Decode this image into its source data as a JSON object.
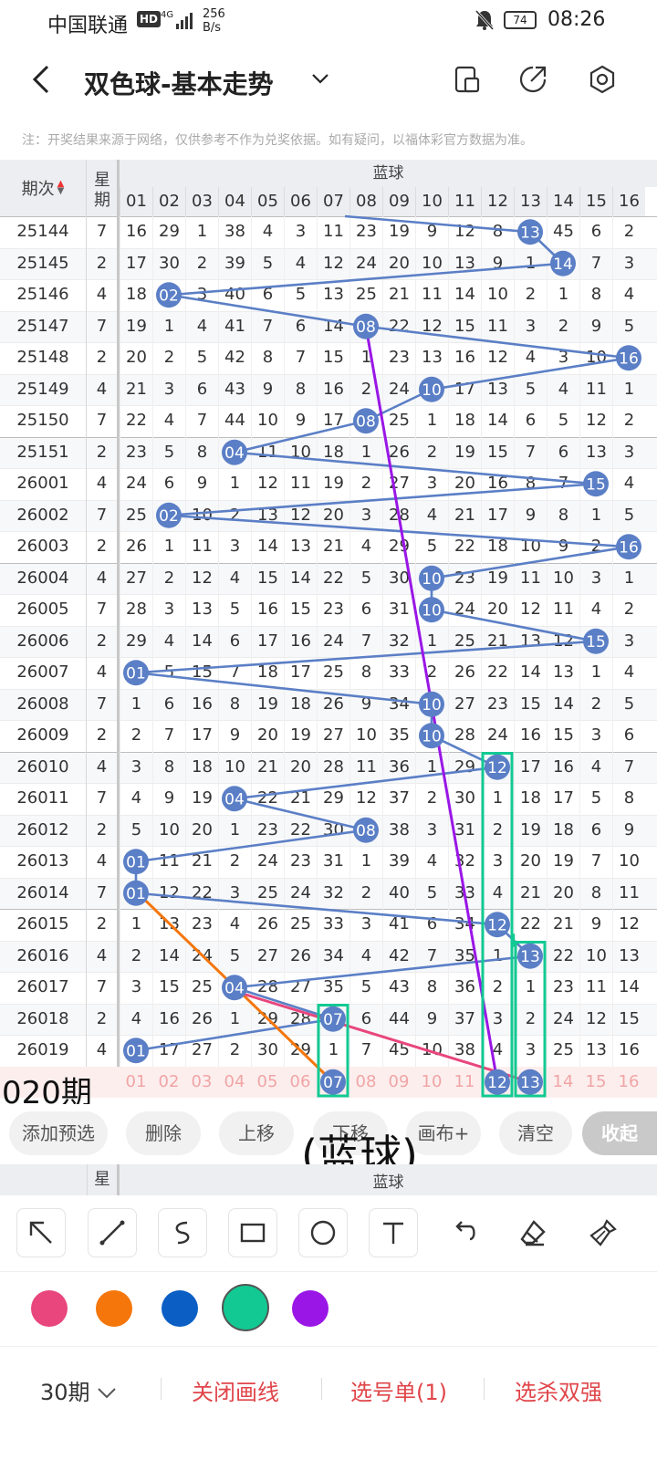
{
  "status": {
    "carrier": "中国联通",
    "hd": "HD",
    "signal": "4G",
    "speed_value": "256",
    "speed_unit": "B/s",
    "battery": "74",
    "time": "08:26"
  },
  "header": {
    "title": "双色球-基本走势"
  },
  "notice": "注：开奖结果来源于网络，仅供参考不作为兑奖依据。如有疑问，以福体彩官方数据为准。",
  "table": {
    "col_period": "期次",
    "col_weekday": "星期",
    "blue_header": "蓝球",
    "numbers": [
      "01",
      "02",
      "03",
      "04",
      "05",
      "06",
      "07",
      "08",
      "09",
      "10",
      "11",
      "12",
      "13",
      "14",
      "15",
      "16"
    ],
    "rows": [
      {
        "period": "25144",
        "weekday": "7",
        "blue": 13,
        "cells": [
          16,
          29,
          1,
          38,
          4,
          3,
          11,
          23,
          19,
          9,
          12,
          8,
          13,
          45,
          6,
          2
        ]
      },
      {
        "period": "25145",
        "weekday": "2",
        "blue": 14,
        "cells": [
          17,
          30,
          2,
          39,
          5,
          4,
          12,
          24,
          20,
          10,
          13,
          9,
          1,
          14,
          7,
          3
        ]
      },
      {
        "period": "25146",
        "weekday": "4",
        "blue": 2,
        "cells": [
          18,
          2,
          3,
          40,
          6,
          5,
          13,
          25,
          21,
          11,
          14,
          10,
          2,
          1,
          8,
          4
        ]
      },
      {
        "period": "25147",
        "weekday": "7",
        "blue": 8,
        "cells": [
          19,
          1,
          4,
          41,
          7,
          6,
          14,
          8,
          22,
          12,
          15,
          11,
          3,
          2,
          9,
          5
        ]
      },
      {
        "period": "25148",
        "weekday": "2",
        "blue": 16,
        "cells": [
          20,
          2,
          5,
          42,
          8,
          7,
          15,
          1,
          23,
          13,
          16,
          12,
          4,
          3,
          10,
          16
        ]
      },
      {
        "period": "25149",
        "weekday": "4",
        "blue": 10,
        "cells": [
          21,
          3,
          6,
          43,
          9,
          8,
          16,
          2,
          24,
          10,
          17,
          13,
          5,
          4,
          11,
          1
        ]
      },
      {
        "period": "25150",
        "weekday": "7",
        "blue": 8,
        "cells": [
          22,
          4,
          7,
          44,
          10,
          9,
          17,
          8,
          25,
          1,
          18,
          14,
          6,
          5,
          12,
          2
        ]
      },
      {
        "period": "25151",
        "weekday": "2",
        "blue": 4,
        "cells": [
          23,
          5,
          8,
          4,
          11,
          10,
          18,
          1,
          26,
          2,
          19,
          15,
          7,
          6,
          13,
          3
        ]
      },
      {
        "period": "26001",
        "weekday": "4",
        "blue": 15,
        "cells": [
          24,
          6,
          9,
          1,
          12,
          11,
          19,
          2,
          27,
          3,
          20,
          16,
          8,
          7,
          15,
          4
        ]
      },
      {
        "period": "26002",
        "weekday": "7",
        "blue": 2,
        "cells": [
          25,
          2,
          10,
          2,
          13,
          12,
          20,
          3,
          28,
          4,
          21,
          17,
          9,
          8,
          1,
          5
        ]
      },
      {
        "period": "26003",
        "weekday": "2",
        "blue": 16,
        "cells": [
          26,
          1,
          11,
          3,
          14,
          13,
          21,
          4,
          29,
          5,
          22,
          18,
          10,
          9,
          2,
          16
        ]
      },
      {
        "period": "26004",
        "weekday": "4",
        "blue": 10,
        "cells": [
          27,
          2,
          12,
          4,
          15,
          14,
          22,
          5,
          30,
          10,
          23,
          19,
          11,
          10,
          3,
          1
        ]
      },
      {
        "period": "26005",
        "weekday": "7",
        "blue": 10,
        "cells": [
          28,
          3,
          13,
          5,
          16,
          15,
          23,
          6,
          31,
          10,
          24,
          20,
          12,
          11,
          4,
          2
        ]
      },
      {
        "period": "26006",
        "weekday": "2",
        "blue": 15,
        "cells": [
          29,
          4,
          14,
          6,
          17,
          16,
          24,
          7,
          32,
          1,
          25,
          21,
          13,
          12,
          15,
          3
        ]
      },
      {
        "period": "26007",
        "weekday": "4",
        "blue": 1,
        "cells": [
          1,
          5,
          15,
          7,
          18,
          17,
          25,
          8,
          33,
          2,
          26,
          22,
          14,
          13,
          1,
          4
        ]
      },
      {
        "period": "26008",
        "weekday": "7",
        "blue": 10,
        "cells": [
          1,
          6,
          16,
          8,
          19,
          18,
          26,
          9,
          34,
          10,
          27,
          23,
          15,
          14,
          2,
          5
        ]
      },
      {
        "period": "26009",
        "weekday": "2",
        "blue": 10,
        "cells": [
          2,
          7,
          17,
          9,
          20,
          19,
          27,
          10,
          35,
          10,
          28,
          24,
          16,
          15,
          3,
          6
        ]
      },
      {
        "period": "26010",
        "weekday": "4",
        "blue": 12,
        "cells": [
          3,
          8,
          18,
          10,
          21,
          20,
          28,
          11,
          36,
          1,
          29,
          12,
          17,
          16,
          4,
          7
        ]
      },
      {
        "period": "26011",
        "weekday": "7",
        "blue": 4,
        "cells": [
          4,
          9,
          19,
          4,
          22,
          21,
          29,
          12,
          37,
          2,
          30,
          1,
          18,
          17,
          5,
          8
        ]
      },
      {
        "period": "26012",
        "weekday": "2",
        "blue": 8,
        "cells": [
          5,
          10,
          20,
          1,
          23,
          22,
          30,
          8,
          38,
          3,
          31,
          2,
          19,
          18,
          6,
          9
        ]
      },
      {
        "period": "26013",
        "weekday": "4",
        "blue": 1,
        "cells": [
          1,
          11,
          21,
          2,
          24,
          23,
          31,
          1,
          39,
          4,
          32,
          3,
          20,
          19,
          7,
          10
        ]
      },
      {
        "period": "26014",
        "weekday": "7",
        "blue": 1,
        "cells": [
          1,
          12,
          22,
          3,
          25,
          24,
          32,
          2,
          40,
          5,
          33,
          4,
          21,
          20,
          8,
          11
        ]
      },
      {
        "period": "26015",
        "weekday": "2",
        "blue": 12,
        "cells": [
          1,
          13,
          23,
          4,
          26,
          25,
          33,
          3,
          41,
          6,
          34,
          12,
          22,
          21,
          9,
          12
        ]
      },
      {
        "period": "26016",
        "weekday": "4",
        "blue": 13,
        "cells": [
          2,
          14,
          24,
          5,
          27,
          26,
          34,
          4,
          42,
          7,
          35,
          1,
          13,
          22,
          10,
          13
        ]
      },
      {
        "period": "26017",
        "weekday": "7",
        "blue": 4,
        "cells": [
          3,
          15,
          25,
          4,
          28,
          27,
          35,
          5,
          43,
          8,
          36,
          2,
          1,
          23,
          11,
          14
        ]
      },
      {
        "period": "26018",
        "weekday": "2",
        "blue": 7,
        "cells": [
          4,
          16,
          26,
          1,
          29,
          28,
          7,
          6,
          44,
          9,
          37,
          3,
          2,
          24,
          12,
          15
        ]
      },
      {
        "period": "26019",
        "weekday": "4",
        "blue": 1,
        "cells": [
          1,
          17,
          27,
          2,
          30,
          29,
          1,
          7,
          45,
          10,
          38,
          4,
          3,
          25,
          13,
          16
        ]
      }
    ],
    "footer_partial": "020期",
    "footer_picks": [
      7,
      12,
      13
    ]
  },
  "overlay_note": "(蓝球)",
  "actions": [
    "添加预选",
    "删除",
    "上移",
    "下移",
    "画布+",
    "清空",
    "收起"
  ],
  "tools": [
    {
      "name": "arrow-tool-icon"
    },
    {
      "name": "line-tool-icon"
    },
    {
      "name": "curve-tool-icon"
    },
    {
      "name": "rect-tool-icon"
    },
    {
      "name": "circle-tool-icon"
    },
    {
      "name": "text-tool-icon"
    },
    {
      "name": "undo-icon"
    },
    {
      "name": "eraser-icon"
    },
    {
      "name": "broom-icon"
    }
  ],
  "colors": [
    "#e8467c",
    "#f5760b",
    "#0b5fc4",
    "#12c993",
    "#9a16e6"
  ],
  "selected_color": "#12c993",
  "bottom": {
    "period_select": "30期",
    "close_draw": "关闭画线",
    "pick_list": "选号单(1)",
    "kill": "选杀双强"
  }
}
